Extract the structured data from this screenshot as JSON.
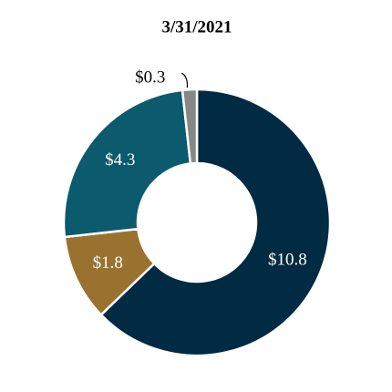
{
  "chart_data": {
    "type": "donut",
    "title": "3/31/2021",
    "values": [
      10.8,
      1.8,
      4.3,
      0.3
    ],
    "value_labels": [
      "$10.8",
      "$1.8",
      "$4.3",
      "$0.3"
    ],
    "colors": [
      "#012a43",
      "#9a7230",
      "#0b5a6d",
      "#878787"
    ]
  }
}
